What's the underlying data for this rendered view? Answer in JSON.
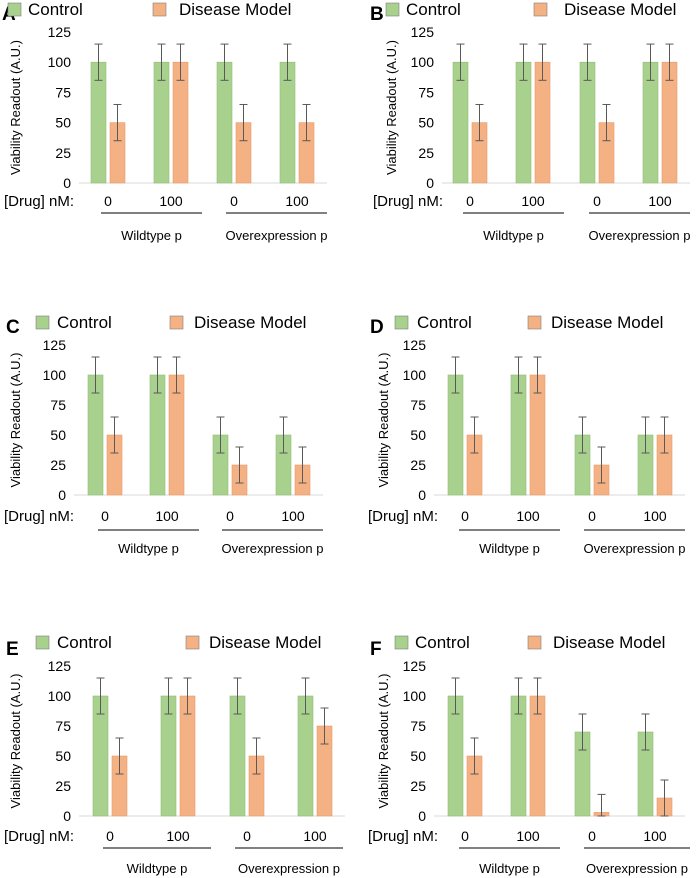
{
  "figure": {
    "legend": {
      "control_label": "Control",
      "disease_label": "Disease Model"
    },
    "dose_label": "[Drug] nM:",
    "y_axis_label": "Viability Readout (A.U.)"
  },
  "colors": {
    "control": "#a9d18e",
    "disease": "#f4b183",
    "error_bar": "#595959",
    "axis": "#7f7f7f"
  },
  "chart_data": [
    {
      "panel": "A",
      "type": "bar",
      "ylabel": "Viability Readout (A.U.)",
      "xlabel": "[Drug] nM:",
      "ylim": [
        0,
        125
      ],
      "yticks": [
        0,
        25,
        50,
        75,
        100,
        125
      ],
      "categories": [
        "0",
        "100",
        "0",
        "100"
      ],
      "groups": [
        {
          "label": "Wildtype p",
          "span": [
            0,
            1
          ]
        },
        {
          "label": "Overexpression p",
          "span": [
            2,
            3
          ]
        }
      ],
      "series": [
        {
          "name": "Control",
          "values": [
            100,
            100,
            100,
            100
          ],
          "errors": [
            15,
            15,
            15,
            15
          ]
        },
        {
          "name": "Disease Model",
          "values": [
            50,
            100,
            50,
            50
          ],
          "errors": [
            15,
            15,
            15,
            15
          ]
        }
      ]
    },
    {
      "panel": "B",
      "type": "bar",
      "ylabel": "Viability Readout (A.U.)",
      "xlabel": "[Drug] nM:",
      "ylim": [
        0,
        125
      ],
      "yticks": [
        0,
        25,
        50,
        75,
        100,
        125
      ],
      "categories": [
        "0",
        "100",
        "0",
        "100"
      ],
      "groups": [
        {
          "label": "Wildtype p",
          "span": [
            0,
            1
          ]
        },
        {
          "label": "Overexpression p",
          "span": [
            2,
            3
          ]
        }
      ],
      "series": [
        {
          "name": "Control",
          "values": [
            100,
            100,
            100,
            100
          ],
          "errors": [
            15,
            15,
            15,
            15
          ]
        },
        {
          "name": "Disease Model",
          "values": [
            50,
            100,
            50,
            100
          ],
          "errors": [
            15,
            15,
            15,
            15
          ]
        }
      ]
    },
    {
      "panel": "C",
      "type": "bar",
      "ylabel": "Viability Readout (A.U.)",
      "xlabel": "[Drug] nM:",
      "ylim": [
        0,
        125
      ],
      "yticks": [
        0,
        25,
        50,
        75,
        100,
        125
      ],
      "categories": [
        "0",
        "100",
        "0",
        "100"
      ],
      "groups": [
        {
          "label": "Wildtype p",
          "span": [
            0,
            1
          ]
        },
        {
          "label": "Overexpression p",
          "span": [
            2,
            3
          ]
        }
      ],
      "series": [
        {
          "name": "Control",
          "values": [
            100,
            100,
            50,
            50
          ],
          "errors": [
            15,
            15,
            15,
            15
          ]
        },
        {
          "name": "Disease Model",
          "values": [
            50,
            100,
            25,
            25
          ],
          "errors": [
            15,
            15,
            15,
            15
          ]
        }
      ]
    },
    {
      "panel": "D",
      "type": "bar",
      "ylabel": "Viability Readout (A.U.)",
      "xlabel": "[Drug] nM:",
      "ylim": [
        0,
        125
      ],
      "yticks": [
        0,
        25,
        50,
        75,
        100,
        125
      ],
      "categories": [
        "0",
        "100",
        "0",
        "100"
      ],
      "groups": [
        {
          "label": "Wildtype p",
          "span": [
            0,
            1
          ]
        },
        {
          "label": "Overexpression p",
          "span": [
            2,
            3
          ]
        }
      ],
      "series": [
        {
          "name": "Control",
          "values": [
            100,
            100,
            50,
            50
          ],
          "errors": [
            15,
            15,
            15,
            15
          ]
        },
        {
          "name": "Disease Model",
          "values": [
            50,
            100,
            25,
            50
          ],
          "errors": [
            15,
            15,
            15,
            15
          ]
        }
      ]
    },
    {
      "panel": "E",
      "type": "bar",
      "ylabel": "Viability Readout (A.U.)",
      "xlabel": "[Drug] nM:",
      "ylim": [
        0,
        125
      ],
      "yticks": [
        0,
        25,
        50,
        75,
        100,
        125
      ],
      "categories": [
        "0",
        "100",
        "0",
        "100"
      ],
      "groups": [
        {
          "label": "Wildtype p",
          "span": [
            0,
            1
          ]
        },
        {
          "label": "Overexpression p",
          "span": [
            2,
            3
          ]
        }
      ],
      "series": [
        {
          "name": "Control",
          "values": [
            100,
            100,
            100,
            100
          ],
          "errors": [
            15,
            15,
            15,
            15
          ]
        },
        {
          "name": "Disease Model",
          "values": [
            50,
            100,
            50,
            75
          ],
          "errors": [
            15,
            15,
            15,
            15
          ]
        }
      ]
    },
    {
      "panel": "F",
      "type": "bar",
      "ylabel": "Viability Readout (A.U.)",
      "xlabel": "[Drug] nM:",
      "ylim": [
        0,
        125
      ],
      "yticks": [
        0,
        25,
        50,
        75,
        100,
        125
      ],
      "categories": [
        "0",
        "100",
        "0",
        "100"
      ],
      "groups": [
        {
          "label": "Wildtype p",
          "span": [
            0,
            1
          ]
        },
        {
          "label": "Overexpression p",
          "span": [
            2,
            3
          ]
        }
      ],
      "series": [
        {
          "name": "Control",
          "values": [
            100,
            100,
            70,
            70
          ],
          "errors": [
            15,
            15,
            15,
            15
          ]
        },
        {
          "name": "Disease Model",
          "values": [
            50,
            100,
            3,
            15
          ],
          "errors": [
            15,
            15,
            15,
            15
          ]
        }
      ]
    }
  ]
}
